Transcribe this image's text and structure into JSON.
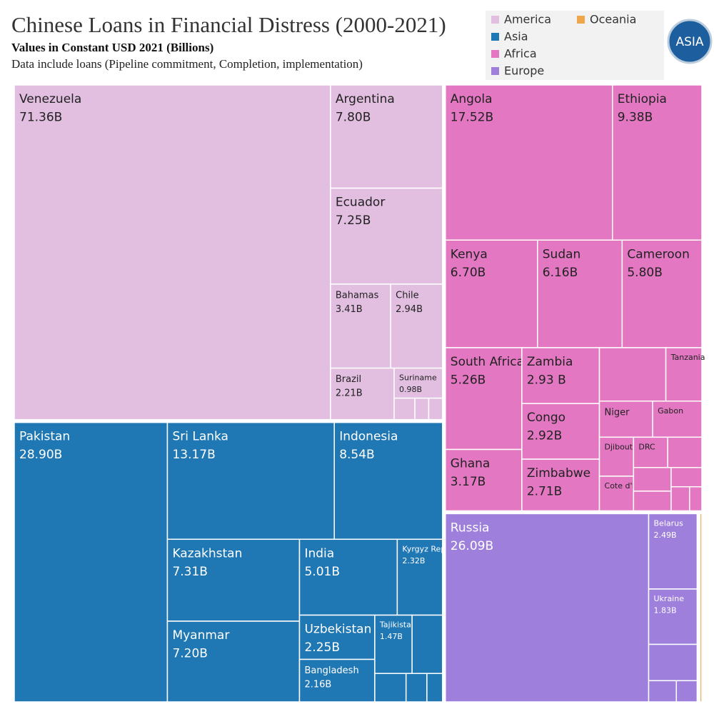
{
  "chart_data": {
    "type": "treemap",
    "title": "Chinese Loans in Financial Distress (2000-2021)",
    "subtitle": "Values in Constant USD 2021 (Billions)",
    "note": "Data include loans (Pipeline commitment, Completion, implementation)",
    "logo_text": "ASIA",
    "legend": "top-right",
    "series": [
      {
        "name": "America",
        "color": "#e2bfe0",
        "categories": [
          "Venezuela",
          "Argentina",
          "Ecuador",
          "Bahamas",
          "Chile",
          "Brazil",
          "Suriname",
          null,
          null,
          null
        ],
        "values": [
          71.36,
          7.8,
          7.25,
          3.41,
          2.94,
          2.21,
          0.98,
          0.3,
          0.2,
          0.2
        ],
        "value_labels": [
          "71.36B",
          "7.80B",
          "7.25B",
          "3.41B",
          "2.94B",
          "2.21B",
          "0.98B",
          null,
          null,
          null
        ]
      },
      {
        "name": "Asia",
        "color": "#1f77b4",
        "categories": [
          "Pakistan",
          "Sri Lanka",
          "Indonesia",
          "Kazakhstan",
          "Myanmar",
          "India",
          "Kyrgyz Republic",
          "Uzbekistan",
          "Bangladesh",
          "Tajikistan",
          null,
          null,
          null,
          null
        ],
        "values": [
          28.9,
          13.17,
          8.54,
          7.31,
          7.2,
          5.01,
          2.32,
          2.25,
          2.16,
          1.47,
          1.2,
          0.6,
          0.4,
          0.3
        ],
        "value_labels": [
          "28.90B",
          "13.17B",
          "8.54B",
          "7.31B",
          "7.20B",
          "5.01B",
          "2.32B",
          "2.25B",
          "2.16B",
          "1.47B",
          null,
          null,
          null,
          null
        ]
      },
      {
        "name": "Africa",
        "color": "#e377c2",
        "categories": [
          "Angola",
          "Ethiopia",
          "Kenya",
          "Sudan",
          "Cameroon",
          "South Africa",
          "Ghana",
          "Zambia",
          "Congo",
          "Zimbabwe",
          null,
          "Tanzania",
          "Niger",
          "Gabon",
          "Djibouti",
          "Cote d'Ivoire",
          "DRC",
          null,
          null,
          null,
          null,
          null,
          null
        ],
        "values": [
          17.52,
          9.38,
          6.7,
          6.16,
          5.8,
          5.26,
          3.17,
          2.93,
          2.92,
          2.71,
          2.4,
          1.3,
          1.3,
          1.2,
          0.9,
          0.8,
          0.7,
          0.7,
          0.6,
          0.5,
          0.4,
          0.3,
          0.2
        ],
        "value_labels": [
          "17.52B",
          "9.38B",
          "6.70B",
          "6.16B",
          "5.80B",
          "5.26B",
          "3.17B",
          "2.93 B",
          "2.92B",
          "2.71B",
          null,
          null,
          null,
          null,
          null,
          null,
          null,
          null,
          null,
          null,
          null,
          null,
          null
        ]
      },
      {
        "name": "Europe",
        "color": "#9e7fdc",
        "categories": [
          "Russia",
          "Belarus",
          "Ukraine",
          null,
          null,
          null
        ],
        "values": [
          26.09,
          2.49,
          1.83,
          1.2,
          0.4,
          0.3
        ],
        "value_labels": [
          "26.09B",
          "2.49B",
          "1.83B",
          null,
          null,
          null
        ]
      },
      {
        "name": "Oceania",
        "color": "#f0a64a",
        "categories": [
          null
        ],
        "values": [
          0.6
        ],
        "value_labels": [
          null
        ]
      }
    ]
  }
}
